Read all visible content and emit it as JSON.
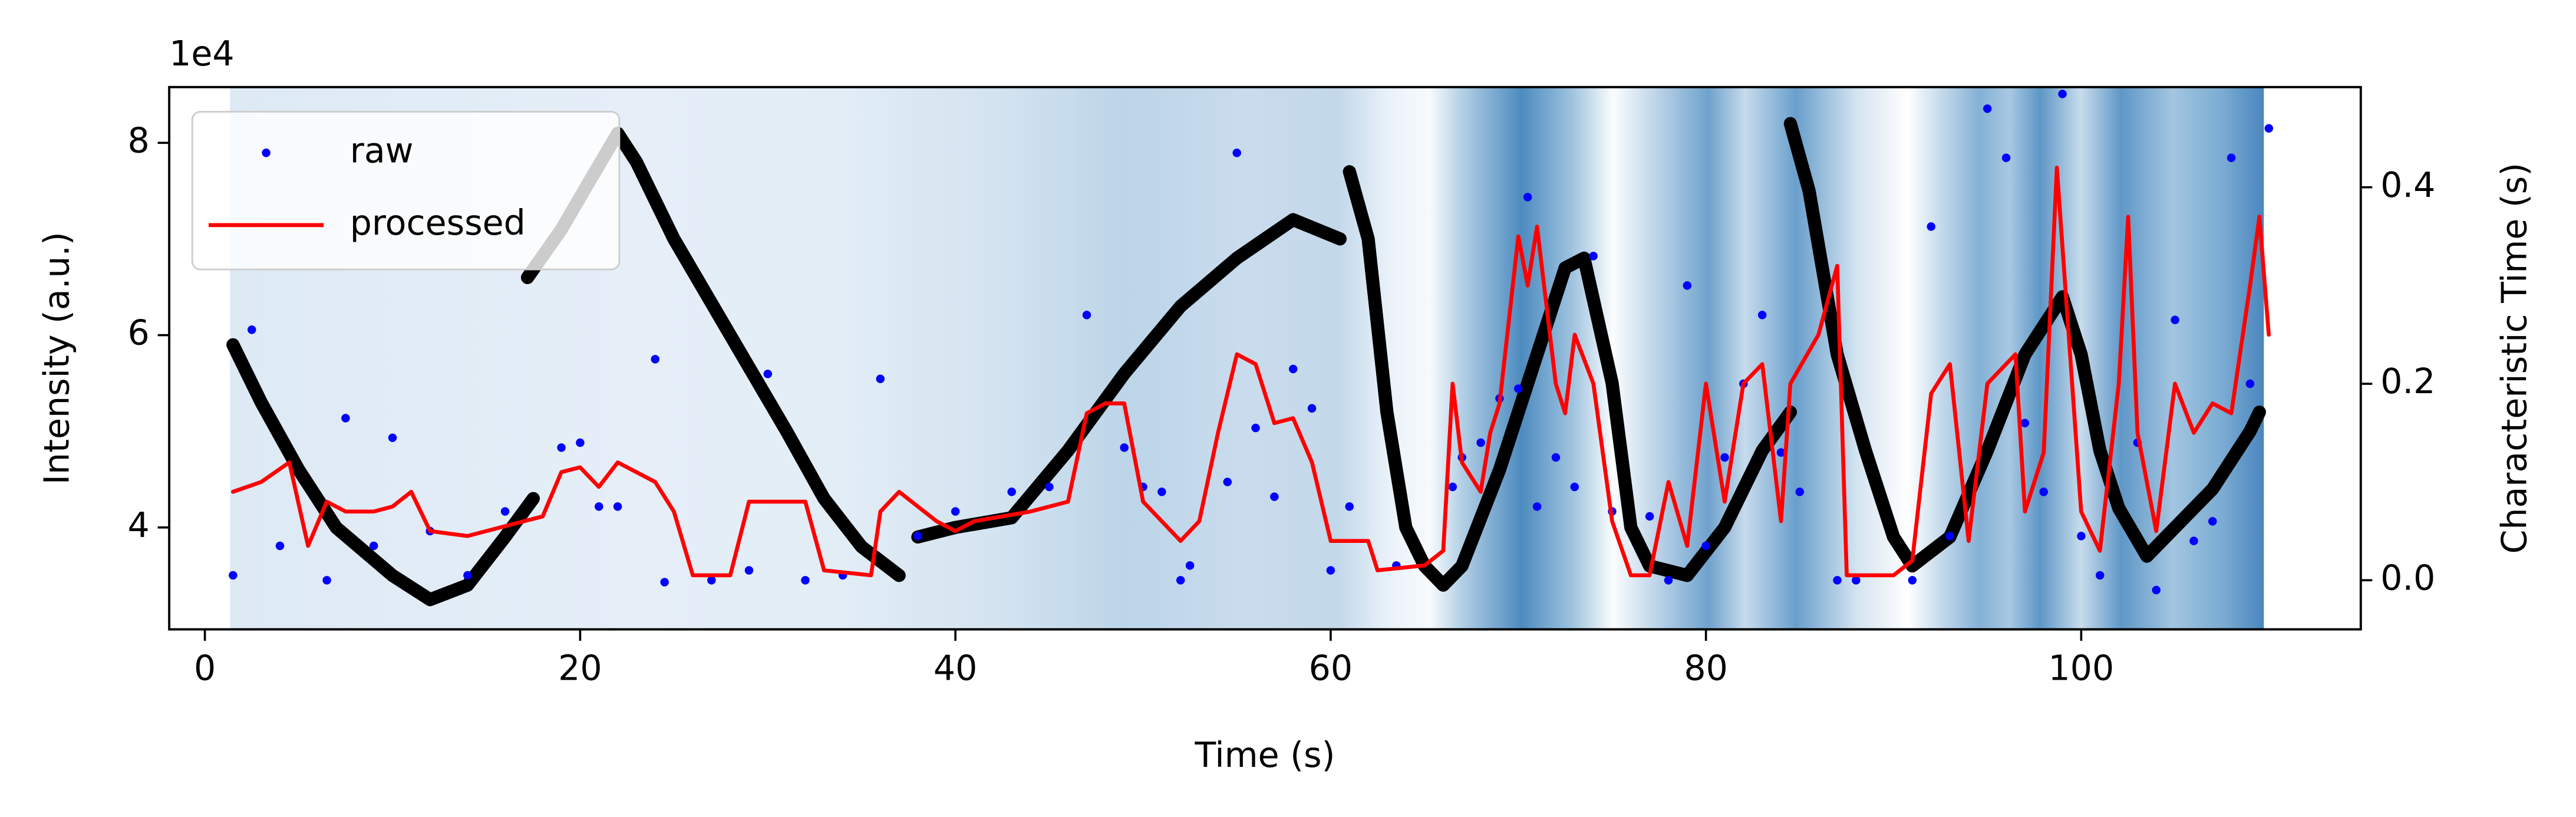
{
  "chart_data": {
    "type": "line",
    "xlabel": "Time (s)",
    "ylabel": "Intensity (a.u.)",
    "y2label": "Characteristic Time (s)",
    "y2color": "#0000ff",
    "offset_text": "1e4",
    "legend": "upper left",
    "xlim": [
      -1.9,
      114.9
    ],
    "xticks": [
      0,
      20,
      40,
      60,
      80,
      100
    ],
    "ylim": [
      29400,
      85800
    ],
    "yticks": [
      {
        "value": 40000,
        "label": "4"
      },
      {
        "value": 60000,
        "label": "6"
      },
      {
        "value": 80000,
        "label": "8"
      }
    ],
    "y2lim": [
      -0.05,
      0.502
    ],
    "y2ticks": [
      {
        "value": 0,
        "label": "0.0"
      },
      {
        "value": 0.2,
        "label": "0.2"
      },
      {
        "value": 0.4,
        "label": "0.4"
      }
    ],
    "series": [
      {
        "color": "#000000",
        "x": [
          1.5,
          3,
          5,
          7,
          10,
          12,
          14,
          16,
          17.5,
          null,
          17.2,
          19,
          20.5,
          22,
          23,
          25,
          28,
          31,
          33,
          35,
          37,
          null,
          38,
          40,
          43,
          46,
          49,
          52,
          55,
          58,
          60.5,
          null,
          61,
          62,
          63,
          64,
          65,
          66,
          67,
          69,
          71,
          72.5,
          73.5,
          75,
          76,
          77,
          79,
          81,
          83,
          84.5,
          null,
          84.5,
          85.5,
          87,
          88.5,
          90,
          91,
          93,
          95,
          97,
          99,
          100,
          101,
          102,
          103.5,
          105,
          107,
          109,
          109.5
        ],
        "values": [
          59000,
          53000,
          46000,
          40000,
          35000,
          32500,
          34000,
          39000,
          43000,
          null,
          66000,
          71000,
          76000,
          81000,
          78000,
          70000,
          60000,
          50000,
          43000,
          38000,
          35000,
          null,
          39000,
          40000,
          41000,
          48000,
          56000,
          63000,
          68000,
          72000,
          70000,
          null,
          77000,
          70000,
          52000,
          40000,
          36000,
          34000,
          36000,
          46000,
          58000,
          67000,
          68000,
          55000,
          40000,
          36000,
          35000,
          40000,
          48000,
          52000,
          null,
          82000,
          75000,
          58000,
          48000,
          39000,
          36000,
          39000,
          48000,
          58000,
          64000,
          58000,
          48000,
          42000,
          37000,
          40000,
          44000,
          50000,
          52000
        ]
      },
      {
        "name": "raw",
        "type": "scatter",
        "color": "#0000ff",
        "axis": "y2",
        "x": [
          1.5,
          2.5,
          4,
          6.5,
          7.5,
          9,
          10,
          12,
          14,
          16,
          19,
          20,
          21,
          22,
          24,
          24.5,
          27,
          29,
          30,
          32,
          34,
          36,
          38,
          40,
          43,
          45,
          47,
          49,
          50,
          51,
          52,
          52.5,
          54.5,
          55,
          56,
          57,
          58,
          59,
          60,
          61,
          63.5,
          66.5,
          67,
          68,
          69,
          70,
          70.5,
          71,
          72,
          73,
          74,
          75,
          77,
          78,
          79,
          80,
          81,
          82,
          83,
          84,
          85,
          87,
          88,
          91,
          92,
          93,
          95,
          96,
          97,
          98,
          99,
          100,
          101,
          103,
          104,
          105,
          106,
          107,
          108,
          109,
          110
        ],
        "values": [
          0.005,
          0.255,
          0.035,
          0.0,
          0.165,
          0.035,
          0.145,
          0.05,
          0.005,
          0.07,
          0.135,
          0.14,
          0.075,
          0.075,
          0.225,
          -0.002,
          0.0,
          0.01,
          0.21,
          0.0,
          0.005,
          0.205,
          0.045,
          0.07,
          0.09,
          0.095,
          0.27,
          0.135,
          0.095,
          0.09,
          0.0,
          0.015,
          0.1,
          0.435,
          0.155,
          0.085,
          0.215,
          0.175,
          0.01,
          0.075,
          0.015,
          0.095,
          0.125,
          0.14,
          0.185,
          0.195,
          0.39,
          0.075,
          0.125,
          0.095,
          0.33,
          0.07,
          0.065,
          0.0,
          0.3,
          0.035,
          0.125,
          0.2,
          0.27,
          0.13,
          0.09,
          0.0,
          0.0,
          0.0,
          0.36,
          0.045,
          0.48,
          0.43,
          0.16,
          0.09,
          0.495,
          0.045,
          0.005,
          0.14,
          -0.01,
          0.265,
          0.04,
          0.06,
          0.43,
          0.2,
          0.46
        ]
      },
      {
        "name": "processed",
        "color": "#ff0000",
        "axis": "y2",
        "x": [
          1.5,
          3,
          4.5,
          5.5,
          6.5,
          7.5,
          9,
          10,
          11,
          12,
          14,
          17,
          18,
          19,
          20,
          21,
          22,
          24,
          25,
          26,
          28,
          29,
          32,
          33,
          35.5,
          36,
          37,
          39,
          40,
          41,
          44,
          46,
          47,
          48,
          49,
          50,
          52,
          53,
          54,
          55,
          56,
          57,
          58,
          59,
          60,
          62,
          62.5,
          65,
          66,
          66.5,
          67,
          68,
          68.5,
          69,
          70,
          70.5,
          71,
          71.5,
          72,
          72.5,
          73,
          74,
          75,
          76,
          77,
          78,
          79,
          80,
          81,
          82,
          83,
          84,
          84.5,
          86,
          87,
          87.5,
          90,
          91,
          92,
          93,
          94,
          95,
          96.5,
          97,
          98,
          98.7,
          100,
          101,
          102,
          102.5,
          103,
          104,
          105,
          106,
          107,
          108,
          109,
          109.5,
          110
        ],
        "values": [
          0.09,
          0.1,
          0.12,
          0.035,
          0.08,
          0.07,
          0.07,
          0.075,
          0.09,
          0.05,
          0.045,
          0.06,
          0.065,
          0.11,
          0.115,
          0.095,
          0.12,
          0.1,
          0.07,
          0.005,
          0.005,
          0.08,
          0.08,
          0.01,
          0.005,
          0.07,
          0.09,
          0.06,
          0.05,
          0.06,
          0.07,
          0.08,
          0.17,
          0.18,
          0.18,
          0.08,
          0.04,
          0.06,
          0.15,
          0.23,
          0.22,
          0.16,
          0.165,
          0.12,
          0.04,
          0.04,
          0.01,
          0.015,
          0.03,
          0.2,
          0.12,
          0.09,
          0.15,
          0.18,
          0.35,
          0.3,
          0.36,
          0.28,
          0.2,
          0.17,
          0.25,
          0.2,
          0.06,
          0.005,
          0.005,
          0.1,
          0.035,
          0.2,
          0.08,
          0.2,
          0.22,
          0.06,
          0.2,
          0.25,
          0.32,
          0.005,
          0.005,
          0.02,
          0.19,
          0.22,
          0.04,
          0.2,
          0.23,
          0.07,
          0.13,
          0.42,
          0.07,
          0.03,
          0.2,
          0.37,
          0.15,
          0.05,
          0.2,
          0.15,
          0.18,
          0.17,
          0.3,
          0.37,
          0.25
        ]
      }
    ]
  }
}
